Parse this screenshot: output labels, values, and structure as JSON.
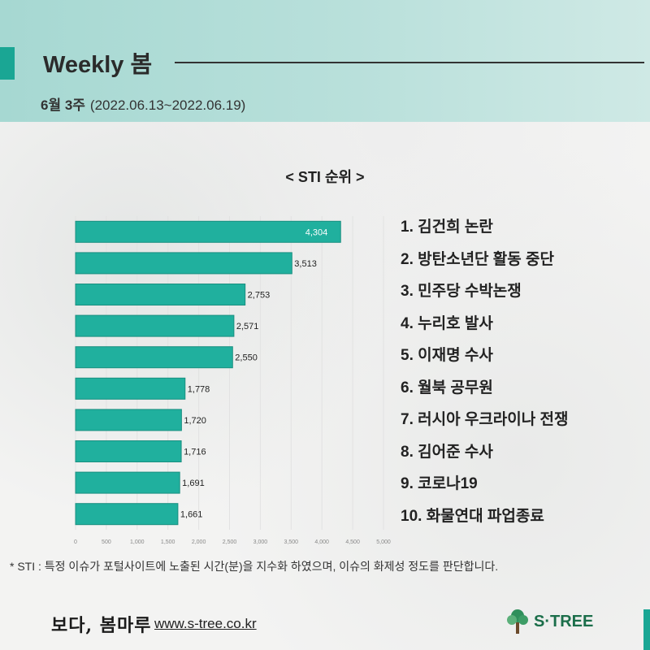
{
  "header": {
    "title": "Weekly 봄",
    "week": "6월 3주",
    "date_range": "(2022.06.13~2022.06.19)"
  },
  "ranking": [
    "1. 김건희 논란",
    "2. 방탄소년단 활동 중단",
    "3. 민주당 수박논쟁",
    "4. 누리호 발사",
    "5. 이재명 수사",
    "6. 월북 공무원",
    "7. 러시아 우크라이나 전쟁",
    "8. 김어준 수사",
    "9. 코로나19",
    "10. 화물연대 파업종료"
  ],
  "footnote": "* STI : 특정 이슈가 포털사이트에 노출된 시간(분)을 지수화 하였으며, 이슈의 화제성 정도를 판단합니다.",
  "footer": {
    "logo_text": "보다, 봄마루",
    "url": "www.s-tree.co.kr",
    "brand": "S·TREE"
  },
  "colors": {
    "bar": "#20b09e",
    "bar_border": "#1a8f80",
    "accent": "#1aa694"
  },
  "chart_data": {
    "type": "bar",
    "orientation": "horizontal",
    "title": "< STI 순위 >",
    "categories": [
      "1",
      "2",
      "3",
      "4",
      "5",
      "6",
      "7",
      "8",
      "9",
      "10"
    ],
    "values": [
      4304,
      3513,
      2753,
      2571,
      2550,
      1778,
      1720,
      1716,
      1691,
      1661
    ],
    "value_labels": [
      "4,304",
      "3,513",
      "2,753",
      "2,571",
      "2,550",
      "1,778",
      "1,720",
      "1,716",
      "1,691",
      "1,661"
    ],
    "xlim": [
      0,
      5000
    ],
    "x_ticks": [
      "0",
      "500",
      "1,000",
      "1,500",
      "2,000",
      "2,500",
      "3,000",
      "3,500",
      "4,000",
      "4,500",
      "5,000"
    ],
    "grid": true
  }
}
